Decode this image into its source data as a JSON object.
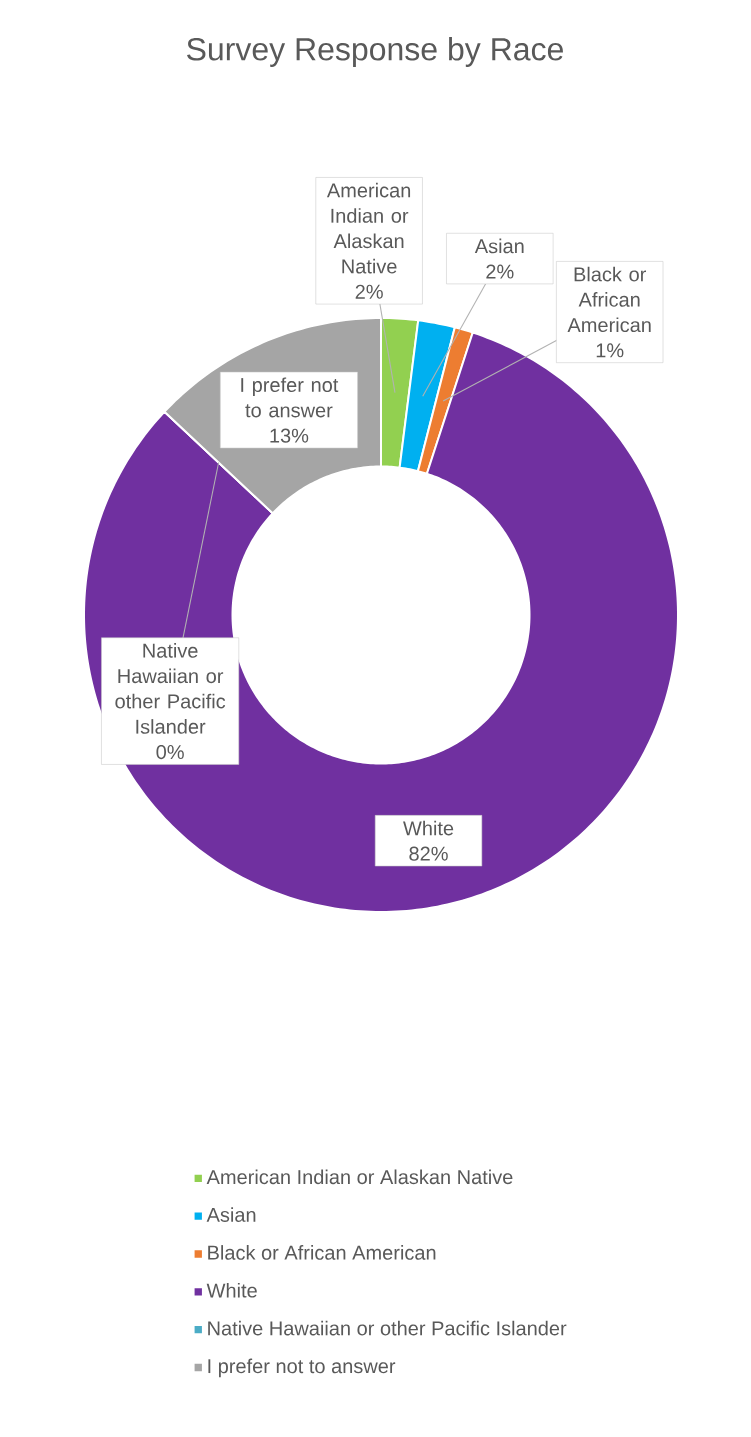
{
  "chart_data": {
    "type": "donut",
    "title": "Survey Response by Race",
    "categories": [
      "American Indian or Alaskan Native",
      "Asian",
      "Black or African American",
      "White",
      "Native Hawaiian or other Pacific Islander",
      "I prefer not to answer"
    ],
    "values": [
      2,
      2,
      1,
      82,
      0,
      13
    ],
    "value_labels": [
      "2%",
      "2%",
      "1%",
      "82%",
      "0%",
      "13%"
    ],
    "colors": [
      "#92d050",
      "#00b0f0",
      "#ed7d31",
      "#7030a0",
      "#4bacc6",
      "#a5a5a5"
    ],
    "legend": "bottom"
  }
}
